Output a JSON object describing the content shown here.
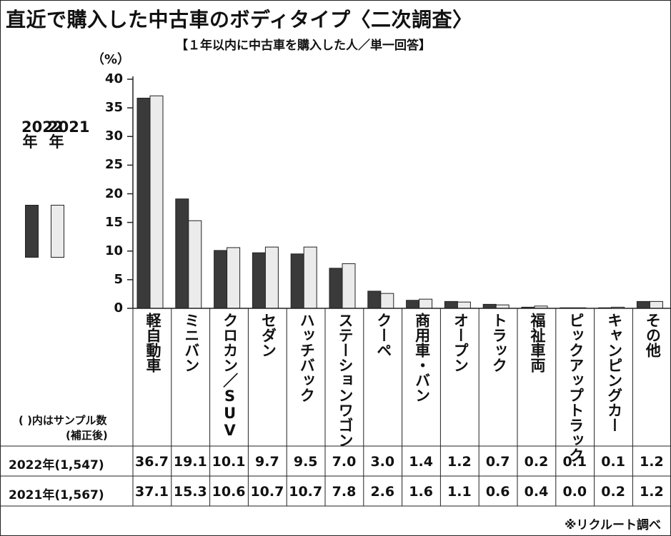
{
  "chart_data": {
    "type": "bar",
    "title": "直近で購入した中古車のボディタイプ〈二次調査〉",
    "subtitle": "【１年以内に中古車を購入した人／単一回答】",
    "ylabel": "（%）",
    "ylim": [
      0,
      40
    ],
    "yticks": [
      "0",
      "5",
      "10",
      "15",
      "20",
      "25",
      "30",
      "35",
      "40"
    ],
    "categories": [
      "軽自動車",
      "ミニバン",
      "クロカン／SUV",
      "セダン",
      "ハッチバック",
      "ステーションワゴン",
      "クーペ",
      "商用車・バン",
      "オープン",
      "トラック",
      "福祉車両",
      "ピックアップトラック",
      "キャンピングカー",
      "その他"
    ],
    "series": [
      {
        "name": "2022年",
        "color": "#3a3a3a",
        "values": [
          36.7,
          19.1,
          10.1,
          9.7,
          9.5,
          7.0,
          3.0,
          1.4,
          1.2,
          0.7,
          0.2,
          0.1,
          0.1,
          1.2
        ],
        "labels": [
          "36.7",
          "19.1",
          "10.1",
          "9.7",
          "9.5",
          "7.0",
          "3.0",
          "1.4",
          "1.2",
          "0.7",
          "0.2",
          "0.1",
          "0.1",
          "1.2"
        ]
      },
      {
        "name": "2021年",
        "color": "#ebebeb",
        "values": [
          37.1,
          15.3,
          10.6,
          10.7,
          10.7,
          7.8,
          2.6,
          1.6,
          1.1,
          0.6,
          0.4,
          0.0,
          0.2,
          1.2
        ],
        "labels": [
          "37.1",
          "15.3",
          "10.6",
          "10.7",
          "10.7",
          "7.8",
          "2.6",
          "1.6",
          "1.1",
          "0.6",
          "0.4",
          "0.0",
          "0.2",
          "1.2"
        ]
      }
    ],
    "table": {
      "note_line1": "( )内はサンプル数",
      "note_line2": "(補正後)",
      "rows": [
        "2022年(1,547)",
        "2021年(1,567)"
      ]
    },
    "source": "※リクルート調べ"
  }
}
